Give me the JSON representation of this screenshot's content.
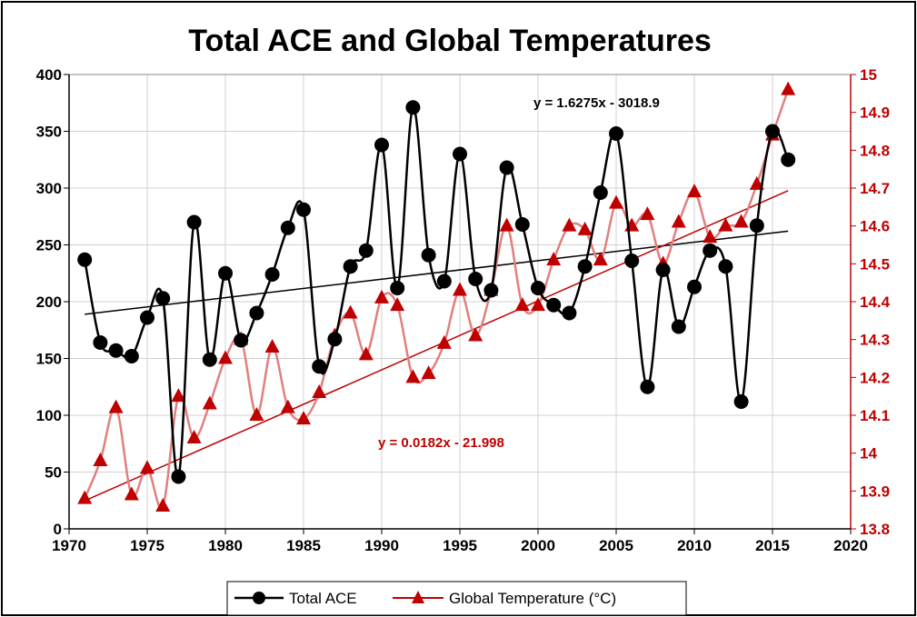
{
  "chart_data": {
    "type": "line",
    "title": "Total ACE and Global Temperatures",
    "x_ticks": [
      "1970",
      "1975",
      "1980",
      "1985",
      "1990",
      "1995",
      "2000",
      "2005",
      "2010",
      "2015",
      "2020"
    ],
    "y_left_ticks": [
      "0",
      "50",
      "100",
      "150",
      "200",
      "250",
      "300",
      "350",
      "400"
    ],
    "y_right_ticks": [
      "13.8",
      "13.9",
      "14",
      "14.1",
      "14.2",
      "14.3",
      "14.4",
      "14.5",
      "14.6",
      "14.7",
      "14.8",
      "14.9",
      "15"
    ],
    "xlim": [
      1970,
      2020
    ],
    "ylim_left": [
      0,
      400
    ],
    "ylim_right": [
      13.8,
      15.0
    ],
    "grid": true,
    "legend_position": "bottom",
    "x": [
      1971,
      1972,
      1973,
      1974,
      1975,
      1976,
      1977,
      1978,
      1979,
      1980,
      1981,
      1982,
      1983,
      1984,
      1985,
      1986,
      1987,
      1988,
      1989,
      1990,
      1991,
      1992,
      1993,
      1994,
      1995,
      1996,
      1997,
      1998,
      1999,
      2000,
      2001,
      2002,
      2003,
      2004,
      2005,
      2006,
      2007,
      2008,
      2009,
      2010,
      2011,
      2012,
      2013,
      2014,
      2015,
      2016
    ],
    "series": [
      {
        "name": "Total ACE",
        "axis": "left",
        "color": "#000000",
        "marker": "circle",
        "values": [
          237,
          164,
          157,
          152,
          186,
          203,
          46,
          270,
          149,
          225,
          166,
          190,
          224,
          265,
          281,
          143,
          167,
          231,
          245,
          338,
          212,
          371,
          241,
          218,
          330,
          220,
          210,
          318,
          268,
          212,
          197,
          190,
          231,
          296,
          348,
          236,
          125,
          228,
          178,
          213,
          245,
          231,
          112,
          267,
          350,
          325
        ]
      },
      {
        "name": "Global Temperature (°C)",
        "axis": "right",
        "color": "#c00000",
        "marker": "triangle",
        "values": [
          13.88,
          13.98,
          14.12,
          13.89,
          13.96,
          13.86,
          14.15,
          14.04,
          14.13,
          14.25,
          14.3,
          14.1,
          14.28,
          14.12,
          14.09,
          14.16,
          14.31,
          14.37,
          14.26,
          14.41,
          14.39,
          14.2,
          14.21,
          14.29,
          14.43,
          14.31,
          14.43,
          14.6,
          14.39,
          14.39,
          14.51,
          14.6,
          14.59,
          14.51,
          14.66,
          14.6,
          14.63,
          14.5,
          14.61,
          14.69,
          14.57,
          14.6,
          14.61,
          14.71,
          14.84,
          14.96
        ]
      }
    ],
    "trendlines": [
      {
        "series": "Total ACE",
        "equation": "y = 1.6275x - 3018.9",
        "slope": 1.6275,
        "intercept": -3018.9,
        "x_range": [
          1971,
          2016
        ],
        "color": "#000000"
      },
      {
        "series": "Global Temperature (°C)",
        "equation": "y = 0.0182x - 21.998",
        "slope": 0.0182,
        "intercept": -21.998,
        "x_range": [
          1971,
          2016
        ],
        "color": "#c00000"
      }
    ]
  }
}
